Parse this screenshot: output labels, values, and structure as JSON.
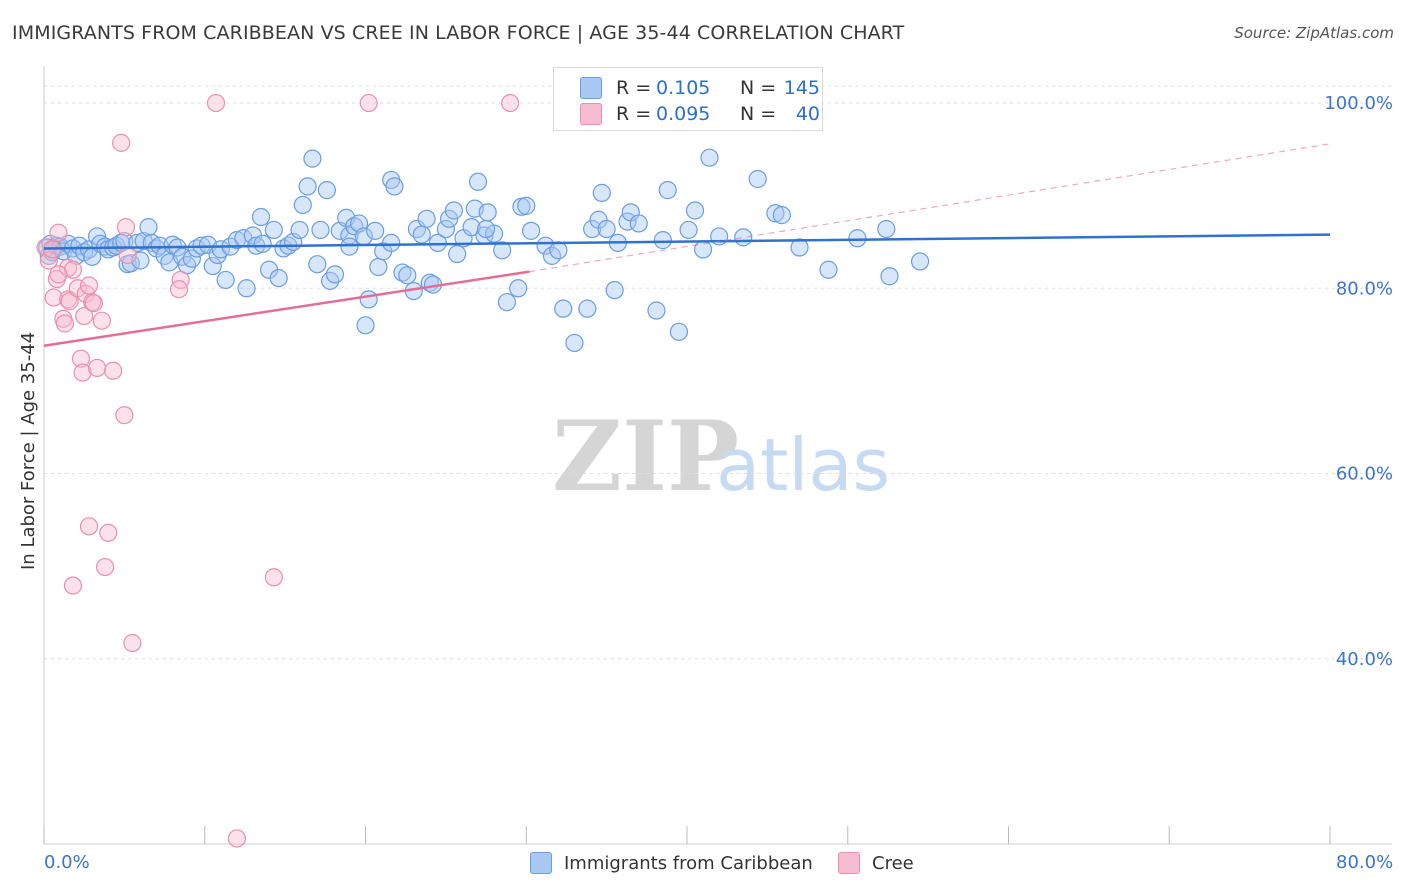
{
  "title": "IMMIGRANTS FROM CARIBBEAN VS CREE IN LABOR FORCE | AGE 35-44 CORRELATION CHART",
  "source": "Source: ZipAtlas.com",
  "watermark": {
    "zip": "ZIP",
    "atlas": "atlas"
  },
  "colors": {
    "blue_fill": "#a9c8f2",
    "blue_stroke": "#6a9ee0",
    "blue_line": "#2f72d0",
    "pink_fill": "#f6bcd0",
    "pink_stroke": "#ea8fae",
    "pink_line": "#e46d98",
    "axis_text": "#3b74c9",
    "grid": "#dddddd"
  },
  "legend_top": [
    {
      "r_label": "R =",
      "r_value": "0.105",
      "n_label": "N =",
      "n_value": "145",
      "color": "#a9c8f2"
    },
    {
      "r_label": "R =",
      "r_value": "0.095",
      "n_label": "N =",
      "n_value": "40",
      "color": "#f6bcd0"
    }
  ],
  "legend_bottom": [
    {
      "label": "Immigrants from Caribbean",
      "color": "#a9c8f2"
    },
    {
      "label": "Cree",
      "color": "#f6bcd0"
    }
  ],
  "chart_data": {
    "type": "scatter",
    "xlabel": "",
    "ylabel": "In Labor Force | Age 35-44",
    "xlim": [
      0,
      80
    ],
    "ylim": [
      20,
      104
    ],
    "x_tick_labels": [
      "0.0%",
      "80.0%"
    ],
    "y_ticks": [
      40,
      60,
      80,
      100
    ],
    "y_tick_labels": [
      "40.0%",
      "60.0%",
      "80.0%",
      "100.0%"
    ],
    "grid": true,
    "legend_position": "top-center",
    "series": [
      {
        "name": "Immigrants from Caribbean",
        "trend": {
          "x": [
            0,
            80
          ],
          "y": [
            84.3,
            85.8
          ],
          "style": "solid"
        },
        "points": [
          [
            0.2,
            84.4
          ],
          [
            0.3,
            83.5
          ],
          [
            0.4,
            84.8
          ],
          [
            0.5,
            83.9
          ],
          [
            0.6,
            84.2
          ],
          [
            0.8,
            84.6
          ],
          [
            1.0,
            84.5
          ],
          [
            1.2,
            84.0
          ],
          [
            1.5,
            84.8
          ],
          [
            1.8,
            84.3
          ],
          [
            2.0,
            83.5
          ],
          [
            2.2,
            84.6
          ],
          [
            2.5,
            83.9
          ],
          [
            2.8,
            84.2
          ],
          [
            3.0,
            83.4
          ],
          [
            3.3,
            85.6
          ],
          [
            3.5,
            84.8
          ],
          [
            3.8,
            84.5
          ],
          [
            4.0,
            84.2
          ],
          [
            4.3,
            84.4
          ],
          [
            4.5,
            84.6
          ],
          [
            4.8,
            84.9
          ],
          [
            5.0,
            85.1
          ],
          [
            5.2,
            82.6
          ],
          [
            5.4,
            82.7
          ],
          [
            5.8,
            84.9
          ],
          [
            6.0,
            83.0
          ],
          [
            6.2,
            85.1
          ],
          [
            6.5,
            86.6
          ],
          [
            6.7,
            84.9
          ],
          [
            7.0,
            84.3
          ],
          [
            7.2,
            84.6
          ],
          [
            7.5,
            83.5
          ],
          [
            7.8,
            82.8
          ],
          [
            8.0,
            84.7
          ],
          [
            8.3,
            84.4
          ],
          [
            8.6,
            83.4
          ],
          [
            8.9,
            82.5
          ],
          [
            9.2,
            83.2
          ],
          [
            9.5,
            84.3
          ],
          [
            9.8,
            84.6
          ],
          [
            10.2,
            84.7
          ],
          [
            10.5,
            82.4
          ],
          [
            10.8,
            83.6
          ],
          [
            11.0,
            84.2
          ],
          [
            11.3,
            80.9
          ],
          [
            11.6,
            84.5
          ],
          [
            12.0,
            85.2
          ],
          [
            12.4,
            85.4
          ],
          [
            12.6,
            80.0
          ],
          [
            13.0,
            85.7
          ],
          [
            13.2,
            84.6
          ],
          [
            13.6,
            84.8
          ],
          [
            14.0,
            82.0
          ],
          [
            14.3,
            86.3
          ],
          [
            14.6,
            81.1
          ],
          [
            14.9,
            84.3
          ],
          [
            15.2,
            84.6
          ],
          [
            15.5,
            85.0
          ],
          [
            15.9,
            86.3
          ],
          [
            16.1,
            89.0
          ],
          [
            16.4,
            91.0
          ],
          [
            16.7,
            94.0
          ],
          [
            17.0,
            82.6
          ],
          [
            17.2,
            86.3
          ],
          [
            17.6,
            90.6
          ],
          [
            17.8,
            80.8
          ],
          [
            18.1,
            81.5
          ],
          [
            18.4,
            86.2
          ],
          [
            18.8,
            87.6
          ],
          [
            19.0,
            85.7
          ],
          [
            19.3,
            86.7
          ],
          [
            19.6,
            87.0
          ],
          [
            19.9,
            85.6
          ],
          [
            20.0,
            76.0
          ],
          [
            20.2,
            78.8
          ],
          [
            20.6,
            86.2
          ],
          [
            20.8,
            82.3
          ],
          [
            21.1,
            84.0
          ],
          [
            21.6,
            84.9
          ],
          [
            21.6,
            91.7
          ],
          [
            21.8,
            91.0
          ],
          [
            22.3,
            81.7
          ],
          [
            22.6,
            81.4
          ],
          [
            23.0,
            79.7
          ],
          [
            23.2,
            86.4
          ],
          [
            23.5,
            85.8
          ],
          [
            23.8,
            87.5
          ],
          [
            24.0,
            80.6
          ],
          [
            24.2,
            80.4
          ],
          [
            24.5,
            84.9
          ],
          [
            25.0,
            86.4
          ],
          [
            25.2,
            87.5
          ],
          [
            25.5,
            88.4
          ],
          [
            25.7,
            83.7
          ],
          [
            26.1,
            85.4
          ],
          [
            26.6,
            86.6
          ],
          [
            26.8,
            88.6
          ],
          [
            27.0,
            91.5
          ],
          [
            27.4,
            85.7
          ],
          [
            27.6,
            88.2
          ],
          [
            28.0,
            85.9
          ],
          [
            28.5,
            84.1
          ],
          [
            28.8,
            78.5
          ],
          [
            29.5,
            80.0
          ],
          [
            29.7,
            88.8
          ],
          [
            30.0,
            88.9
          ],
          [
            30.3,
            86.2
          ],
          [
            31.2,
            84.6
          ],
          [
            31.6,
            83.5
          ],
          [
            32.0,
            84.1
          ],
          [
            32.3,
            77.8
          ],
          [
            33.0,
            74.1
          ],
          [
            33.8,
            77.8
          ],
          [
            34.1,
            86.4
          ],
          [
            34.5,
            87.4
          ],
          [
            34.7,
            90.3
          ],
          [
            35.0,
            86.4
          ],
          [
            35.5,
            79.8
          ],
          [
            35.7,
            84.9
          ],
          [
            36.3,
            87.2
          ],
          [
            36.5,
            88.2
          ],
          [
            37.0,
            87.0
          ],
          [
            38.1,
            77.6
          ],
          [
            38.5,
            85.2
          ],
          [
            38.8,
            90.6
          ],
          [
            39.5,
            75.3
          ],
          [
            40.1,
            86.3
          ],
          [
            40.5,
            88.4
          ],
          [
            41.0,
            84.2
          ],
          [
            41.4,
            94.1
          ],
          [
            42.0,
            85.6
          ],
          [
            43.5,
            85.5
          ],
          [
            44.4,
            91.8
          ],
          [
            45.5,
            88.1
          ],
          [
            45.9,
            87.9
          ],
          [
            47.0,
            84.4
          ],
          [
            48.8,
            82.0
          ],
          [
            50.6,
            85.4
          ],
          [
            52.4,
            86.4
          ],
          [
            52.6,
            81.3
          ],
          [
            54.5,
            82.9
          ],
          [
            27.5,
            86.4
          ],
          [
            19.0,
            84.5
          ],
          [
            13.5,
            87.7
          ]
        ]
      },
      {
        "name": "Cree",
        "trend": {
          "x": [
            0,
            30.2
          ],
          "y": [
            73.8,
            81.8
          ],
          "style": "solid",
          "extension": {
            "x": [
              30.2,
              80
            ],
            "y": [
              81.8,
              95.6
            ],
            "style": "dashed"
          }
        },
        "points": [
          [
            0.1,
            84.4
          ],
          [
            0.3,
            83.0
          ],
          [
            0.5,
            84.2
          ],
          [
            0.6,
            79.0
          ],
          [
            0.8,
            81.0
          ],
          [
            0.9,
            86.0
          ],
          [
            1.2,
            76.7
          ],
          [
            1.3,
            76.2
          ],
          [
            1.5,
            78.8
          ],
          [
            1.5,
            82.2
          ],
          [
            1.6,
            78.6
          ],
          [
            1.8,
            82.0
          ],
          [
            2.1,
            80.0
          ],
          [
            2.3,
            72.4
          ],
          [
            2.4,
            70.9
          ],
          [
            2.5,
            77.0
          ],
          [
            2.6,
            79.4
          ],
          [
            2.8,
            80.3
          ],
          [
            2.8,
            54.3
          ],
          [
            3.0,
            78.5
          ],
          [
            3.1,
            78.4
          ],
          [
            3.3,
            71.4
          ],
          [
            3.6,
            76.5
          ],
          [
            3.8,
            49.9
          ],
          [
            4.0,
            53.6
          ],
          [
            4.3,
            71.1
          ],
          [
            4.8,
            95.7
          ],
          [
            5.0,
            66.3
          ],
          [
            5.1,
            86.6
          ],
          [
            5.5,
            41.7
          ],
          [
            1.8,
            47.9
          ],
          [
            8.5,
            80.9
          ],
          [
            8.4,
            79.9
          ],
          [
            10.7,
            100.0
          ],
          [
            12.0,
            20.6
          ],
          [
            14.3,
            48.8
          ],
          [
            20.2,
            100.0
          ],
          [
            29.0,
            100.0
          ],
          [
            5.2,
            83.6
          ],
          [
            0.9,
            81.5
          ]
        ]
      }
    ]
  }
}
